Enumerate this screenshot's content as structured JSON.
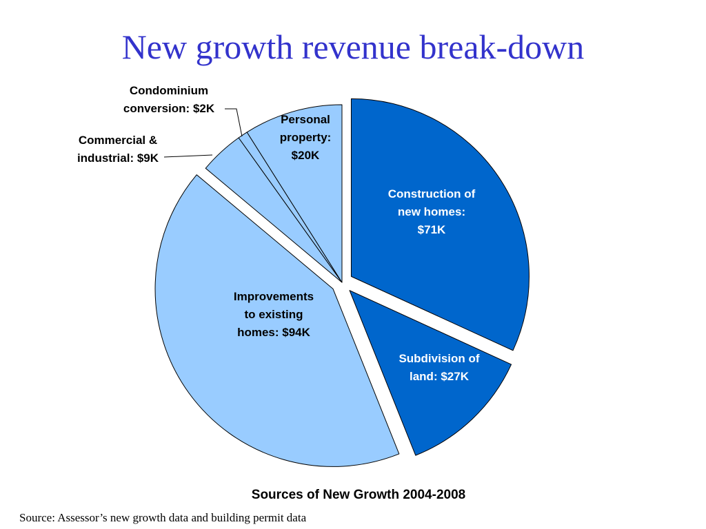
{
  "slide": {
    "title": "New growth revenue break-down",
    "source_note": "Source: Assessor’s new growth data and building permit data"
  },
  "chart_data": {
    "type": "pie",
    "title": "Sources of New Growth 2004-2008",
    "unit": "$K",
    "slices": [
      {
        "label": "Construction of new homes: $71K",
        "lines": [
          "Construction of",
          "new homes:",
          "$71K"
        ],
        "value": 71,
        "color": "#0066cc",
        "label_color": "#ffffff",
        "exploded": true
      },
      {
        "label": "Subdivision of land: $27K",
        "lines": [
          "Subdivision of",
          "land: $27K"
        ],
        "value": 27,
        "color": "#0066cc",
        "label_color": "#ffffff",
        "exploded": true
      },
      {
        "label": "Improvements to existing homes: $94K",
        "lines": [
          "Improvements",
          "to existing",
          "homes: $94K"
        ],
        "value": 94,
        "color": "#99ccff",
        "label_color": "#000000",
        "exploded": true
      },
      {
        "label": "Commercial & industrial: $9K",
        "lines": [
          "Commercial &",
          "industrial: $9K"
        ],
        "value": 9,
        "color": "#99ccff",
        "label_color": "#000000",
        "exploded": false
      },
      {
        "label": "Condominium conversion: $2K",
        "lines": [
          "Condominium",
          "conversion: $2K"
        ],
        "value": 2,
        "color": "#99ccff",
        "label_color": "#000000",
        "exploded": false
      },
      {
        "label": "Personal property: $20K",
        "lines": [
          "Personal",
          "property:",
          "$20K"
        ],
        "value": 20,
        "color": "#99ccff",
        "label_color": "#000000",
        "exploded": false
      }
    ],
    "start_angle": "12 o'clock",
    "direction": "clockwise",
    "legend": "none"
  }
}
